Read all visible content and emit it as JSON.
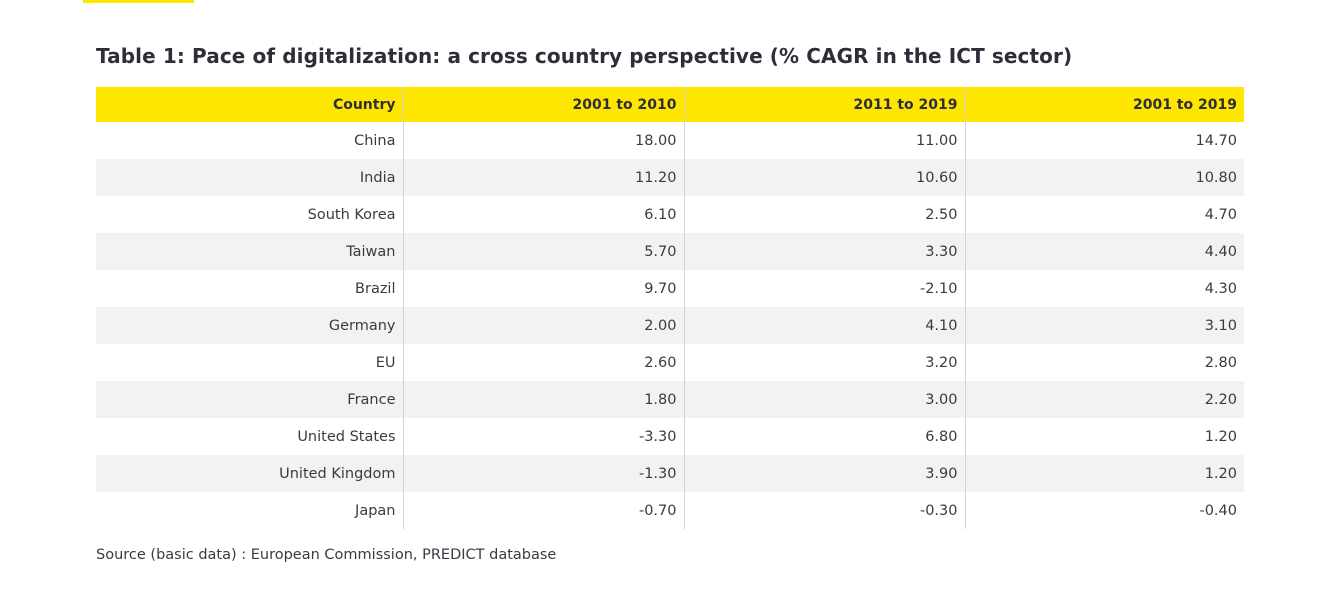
{
  "title": "Table 1: Pace of digitalization: a cross country perspective (% CAGR in the ICT sector)",
  "table": {
    "headers": [
      "Country",
      "2001 to 2010",
      "2011 to 2019",
      "2001 to 2019"
    ],
    "rows": [
      [
        "China",
        "18.00",
        "11.00",
        "14.70"
      ],
      [
        "India",
        "11.20",
        "10.60",
        "10.80"
      ],
      [
        "South Korea",
        "6.10",
        "2.50",
        "4.70"
      ],
      [
        "Taiwan",
        "5.70",
        "3.30",
        "4.40"
      ],
      [
        "Brazil",
        "9.70",
        "-2.10",
        "4.30"
      ],
      [
        "Germany",
        "2.00",
        "4.10",
        "3.10"
      ],
      [
        "EU",
        "2.60",
        "3.20",
        "2.80"
      ],
      [
        "France",
        "1.80",
        "3.00",
        "2.20"
      ],
      [
        "United States",
        "-3.30",
        "6.80",
        "1.20"
      ],
      [
        "United Kingdom",
        "-1.30",
        "3.90",
        "1.20"
      ],
      [
        "Japan",
        "-0.70",
        "-0.30",
        "-0.40"
      ]
    ]
  },
  "source": "Source (basic data) : European Commission, PREDICT database",
  "colors": {
    "header_background": "#ffe600",
    "stripe_background": "#f2f2f2",
    "text": "#2e2e38"
  }
}
